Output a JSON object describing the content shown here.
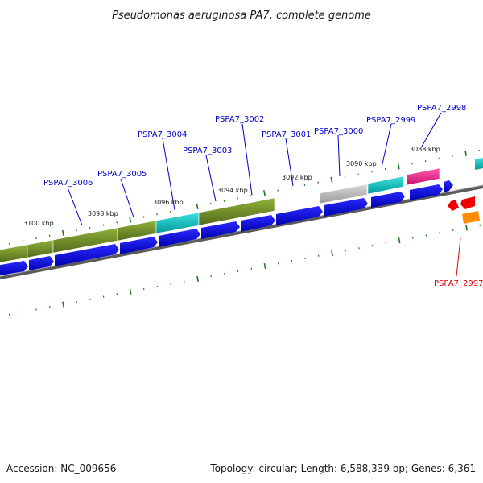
{
  "title": "Pseudomonas aeruginosa PA7, complete genome",
  "footer": {
    "accession": "Accession: NC_009656",
    "summary": "Topology: circular; Length: 6,588,339 bp; Genes: 6,361"
  },
  "tick_labels": [
    "3100 kbp",
    "3098 kbp",
    "3096 kbp",
    "3094 kbp",
    "3092 kbp",
    "3090 kbp",
    "3088 kbp"
  ],
  "gene_labels": [
    {
      "text": "PSPA7_3006",
      "color": "#0000cc"
    },
    {
      "text": "PSPA7_3005",
      "color": "#0000cc"
    },
    {
      "text": "PSPA7_3004",
      "color": "#0000cc"
    },
    {
      "text": "PSPA7_3003",
      "color": "#0000cc"
    },
    {
      "text": "PSPA7_3002",
      "color": "#0000cc"
    },
    {
      "text": "PSPA7_3001",
      "color": "#0000cc"
    },
    {
      "text": "PSPA7_3000",
      "color": "#0000cc"
    },
    {
      "text": "PSPA7_2999",
      "color": "#0000cc"
    },
    {
      "text": "PSPA7_2998",
      "color": "#0000cc"
    },
    {
      "text": "PSPA7_2997",
      "color": "#dd0000"
    }
  ],
  "colors": {
    "cds_blue": "#0000ee",
    "olive": "#6b8e23",
    "cyan": "#00cccc",
    "magenta": "#ff1493",
    "gray": "#b0b0b0",
    "red": "#ee0000",
    "orange": "#ff8c00",
    "backbone": "#808080",
    "tick_green": "#1a7a1a"
  }
}
